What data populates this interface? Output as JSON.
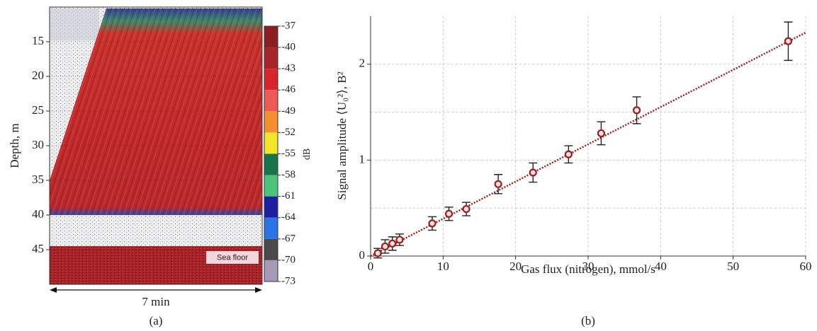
{
  "chart_data": [
    {
      "type": "echogram",
      "ylabel": "Depth, m",
      "ylim": [
        10,
        50
      ],
      "yticks": [
        15,
        20,
        25,
        30,
        35,
        40,
        45
      ],
      "grid": true,
      "colorbar": {
        "label": "dB",
        "lim": [
          -37,
          -73
        ],
        "ticks": [
          -37,
          -40,
          -43,
          -46,
          -49,
          -52,
          -55,
          -58,
          -61,
          -64,
          -67,
          -70,
          -73
        ],
        "colors": [
          "#8c1d22",
          "#a8232a",
          "#d8242c",
          "#ee5a55",
          "#f4912e",
          "#f2e52a",
          "#18744a",
          "#4cc57a",
          "#1c1fa0",
          "#2a74e8",
          "#4a4a4a",
          "#a79ab8"
        ]
      },
      "annotation": "Sea floor",
      "xlabel": "7 min",
      "caption": "(a)"
    },
    {
      "type": "scatter",
      "xlabel": "Gas flux (nitrogen), mmol/s",
      "ylabel": "Signal amplitude ⟨U₀²⟩, B²",
      "caption": "(b)",
      "xlim": [
        0,
        60
      ],
      "xticks": [
        0,
        10,
        20,
        30,
        40,
        50,
        60
      ],
      "ylim": [
        0,
        2.5
      ],
      "yticks": [
        0,
        1,
        2
      ],
      "ygrid": [
        0.5,
        1,
        1.5,
        2
      ],
      "grid": true,
      "color": "#9b1f1f",
      "x": [
        1,
        2,
        3,
        4,
        8.5,
        10.8,
        13.2,
        17.6,
        22.4,
        27.3,
        31.8,
        36.7,
        57.6
      ],
      "y": [
        0.03,
        0.1,
        0.13,
        0.17,
        0.34,
        0.44,
        0.49,
        0.75,
        0.87,
        1.06,
        1.28,
        1.52,
        2.24
      ],
      "err": [
        0.05,
        0.07,
        0.07,
        0.06,
        0.07,
        0.07,
        0.07,
        0.1,
        0.1,
        0.09,
        0.12,
        0.14,
        0.2
      ],
      "fit": {
        "x": [
          0,
          60
        ],
        "y": [
          0,
          2.33
        ]
      }
    }
  ]
}
